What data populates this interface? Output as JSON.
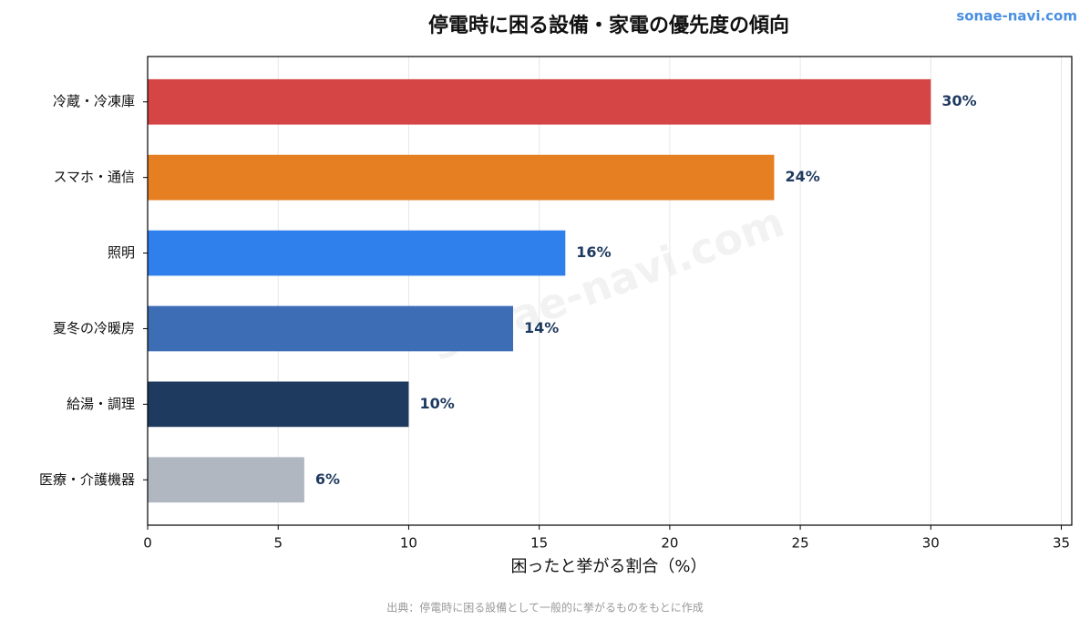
{
  "chart_data": {
    "type": "barh",
    "title": "停電時に困る設備・家電の優先度の傾向",
    "brand": "sonae-navi.com",
    "watermark": "sonae-navi.com",
    "xlabel": "困ったと挙がる割合（%）",
    "source": "出典：停電時に困る設備として一般的に挙がるものをもとに作成",
    "categories": [
      "冷蔵・冷凍庫",
      "スマホ・通信",
      "照明",
      "夏冬の冷暖房",
      "給湯・調理",
      "医療・介護機器"
    ],
    "values": [
      30,
      24,
      16,
      14,
      10,
      6
    ],
    "value_labels": [
      "30%",
      "24%",
      "16%",
      "14%",
      "10%",
      "6%"
    ],
    "colors": [
      "#d64545",
      "#e67e22",
      "#2f80ed",
      "#3d6db5",
      "#1f3a5f",
      "#b0b7c0"
    ],
    "xlim": [
      0,
      35.4
    ],
    "xticks": [
      0,
      5,
      10,
      15,
      20,
      25,
      30,
      35
    ],
    "grid": true
  }
}
